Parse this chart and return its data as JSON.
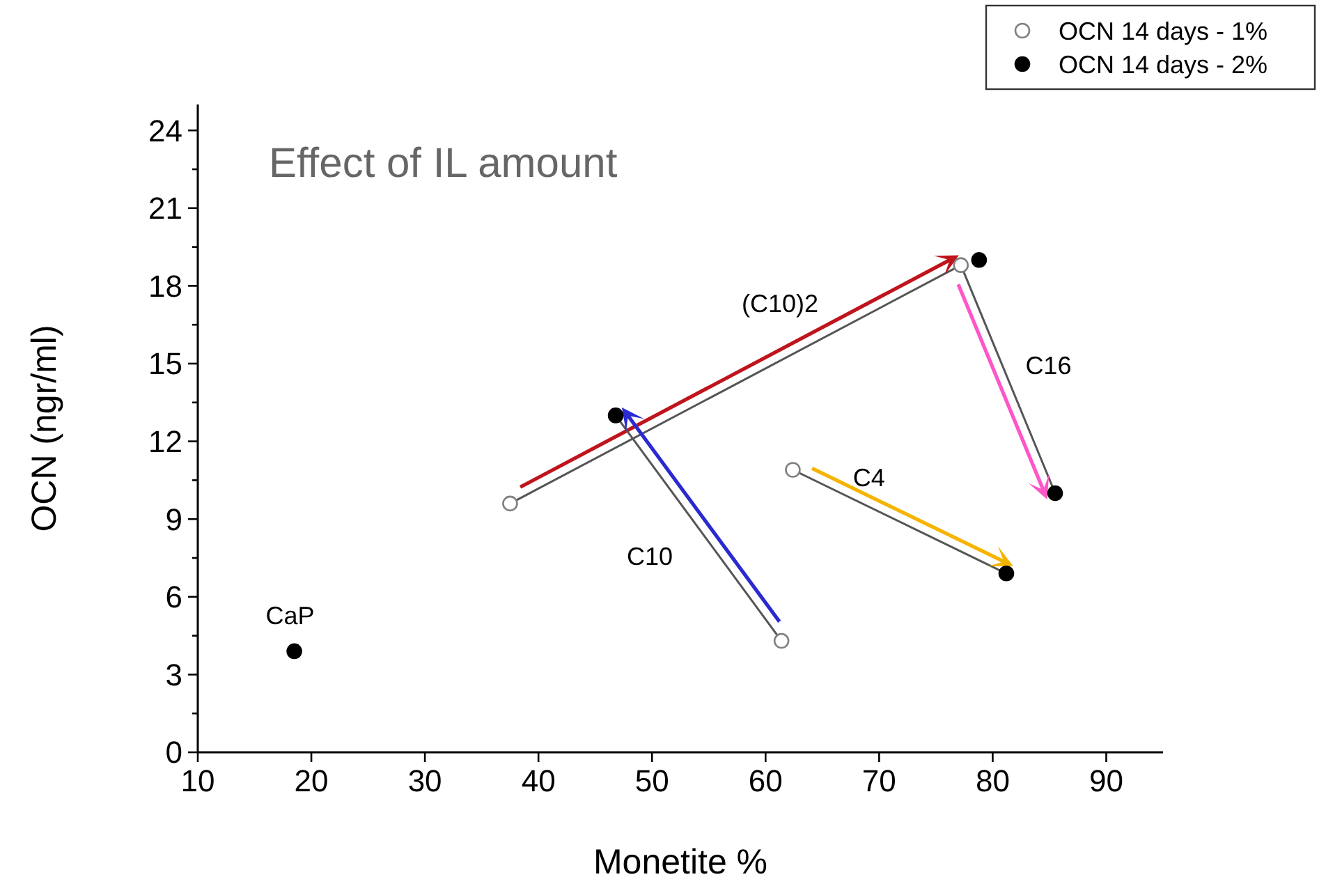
{
  "chart_data": {
    "type": "scatter",
    "title": "Effect of IL amount",
    "xlabel": "Monetite %",
    "ylabel": "OCN (ngr/ml)",
    "xlim": [
      10,
      95
    ],
    "xticks": [
      10,
      20,
      30,
      40,
      50,
      60,
      70,
      80,
      90
    ],
    "ylim": [
      0,
      25
    ],
    "yticks": [
      0,
      {
        "value": 1.5,
        "label": null
      },
      3,
      {
        "value": 4.5,
        "label": null
      },
      6,
      {
        "value": 7.5,
        "label": null
      },
      9,
      {
        "value": 10.5,
        "label": null
      },
      12,
      {
        "value": 13.5,
        "label": null
      },
      15,
      {
        "value": 16.5,
        "label": null
      },
      18,
      {
        "value": 19.5,
        "label": null
      },
      21,
      {
        "value": 22.5,
        "label": null
      },
      24
    ],
    "grid": false,
    "legend": "top right",
    "series": [
      {
        "name": "OCN 14 days - 1%",
        "color": "#808080",
        "marker": "circle",
        "x": [
          37.5,
          61.4,
          62.4,
          77.2
        ],
        "values": [
          9.6,
          4.3,
          10.9,
          18.8
        ]
      },
      {
        "name": "OCN 14 days - 2%",
        "color": "#000000",
        "marker": "circle",
        "x": [
          18.5,
          46.8,
          78.8,
          85.5,
          81.2
        ],
        "values": [
          3.9,
          13,
          19,
          10,
          6.9
        ]
      },
      {
        "type": "line",
        "color": "#555555",
        "marker": "none",
        "x": [
          37.5,
          77.2
        ],
        "values": [
          9.6,
          18.8
        ]
      },
      {
        "type": "line",
        "color": "#555555",
        "marker": "none",
        "x": [
          77.2,
          85.5
        ],
        "values": [
          18.8,
          10
        ]
      },
      {
        "type": "line",
        "color": "#555555",
        "marker": "none",
        "x": [
          61.4,
          46.8
        ],
        "values": [
          4.3,
          13
        ]
      },
      {
        "type": "line",
        "color": "#555555",
        "marker": "none",
        "x": [
          62.4,
          81.2
        ],
        "values": [
          10.9,
          6.9
        ]
      }
    ],
    "annotations": [
      "(C10)2",
      "C16",
      "C10",
      "C4",
      "CaP"
    ]
  }
}
